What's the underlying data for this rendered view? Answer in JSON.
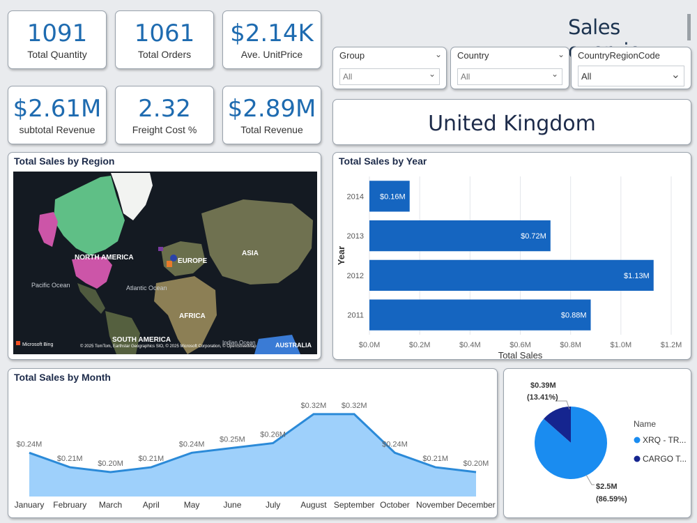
{
  "header": {
    "title": "Sales overview"
  },
  "kpis": {
    "total_quantity": {
      "value": "1091",
      "label": "Total Quantity"
    },
    "total_orders": {
      "value": "1061",
      "label": "Total Orders"
    },
    "ave_unit_price": {
      "value": "$2.14K",
      "label": "Ave. UnitPrice"
    },
    "subtotal_revenue": {
      "value": "$2.61M",
      "label": "subtotal Revenue"
    },
    "freight_cost": {
      "value": "2.32",
      "label": "Freight Cost %"
    },
    "total_revenue": {
      "value": "$2.89M",
      "label": "Total Revenue"
    }
  },
  "slicers": {
    "group": {
      "label": "Group",
      "value": "All"
    },
    "country": {
      "label": "Country",
      "value": "All"
    },
    "country_region_code": {
      "label": "CountryRegionCode",
      "value": "All"
    }
  },
  "selected_country": "United Kingdom",
  "map": {
    "title": "Total Sales by Region",
    "labels": {
      "north_america": "NORTH AMERICA",
      "europe": "EUROPE",
      "asia": "ASIA",
      "africa": "AFRICA",
      "south_america": "SOUTH AMERICA",
      "pacific_ocean": "Pacific Ocean",
      "atlantic_ocean": "Atlantic Ocean",
      "indian_ocean": "Indian Ocean",
      "australia": "AUSTRALIA"
    },
    "brand": "Microsoft Bing",
    "attribution": "© 2025 TomTom, Earthstar Geographics SIO, © 2025 Microsoft Corporation, © OpenStreetMap"
  },
  "chart_data": [
    {
      "id": "year",
      "type": "bar",
      "orientation": "horizontal",
      "title": "Total Sales by Year",
      "xlabel": "Total Sales",
      "ylabel": "Year",
      "categories": [
        "2014",
        "2013",
        "2012",
        "2011"
      ],
      "values": [
        0.16,
        0.72,
        1.13,
        0.88
      ],
      "data_labels": [
        "$0.16M",
        "$0.72M",
        "$1.13M",
        "$0.88M"
      ],
      "xlim": [
        0,
        1.2
      ],
      "xticks": [
        0,
        0.2,
        0.4,
        0.6,
        0.8,
        1.0,
        1.2
      ],
      "xtick_labels": [
        "$0.0M",
        "$0.2M",
        "$0.4M",
        "$0.6M",
        "$0.8M",
        "$1.0M",
        "$1.2M"
      ],
      "grid": true,
      "color": "#1565c0"
    },
    {
      "id": "month",
      "type": "area",
      "title": "Total Sales by Month",
      "categories": [
        "January",
        "February",
        "March",
        "April",
        "May",
        "June",
        "July",
        "August",
        "September",
        "October",
        "November",
        "December"
      ],
      "values": [
        0.24,
        0.21,
        0.2,
        0.21,
        0.24,
        0.25,
        0.26,
        0.32,
        0.32,
        0.24,
        0.21,
        0.2
      ],
      "data_labels": [
        "$0.24M",
        "$0.21M",
        "$0.20M",
        "$0.21M",
        "$0.24M",
        "$0.25M",
        "$0.26M",
        "$0.32M",
        "$0.32M",
        "$0.24M",
        "$0.21M",
        "$0.20M"
      ],
      "line_color": "#2b8ad8",
      "fill_color": "#9ed0fb"
    },
    {
      "id": "pie",
      "type": "pie",
      "legend_title": "Name",
      "legend_position": "right",
      "series": [
        {
          "name": "XRQ - TR...",
          "value": 2.5,
          "label": "$2.5M",
          "percent_label": "(86.59%)",
          "color": "#1a8cf0"
        },
        {
          "name": "CARGO T...",
          "value": 0.39,
          "label": "$0.39M",
          "percent_label": "(13.41%)",
          "color": "#15258f"
        }
      ]
    }
  ]
}
